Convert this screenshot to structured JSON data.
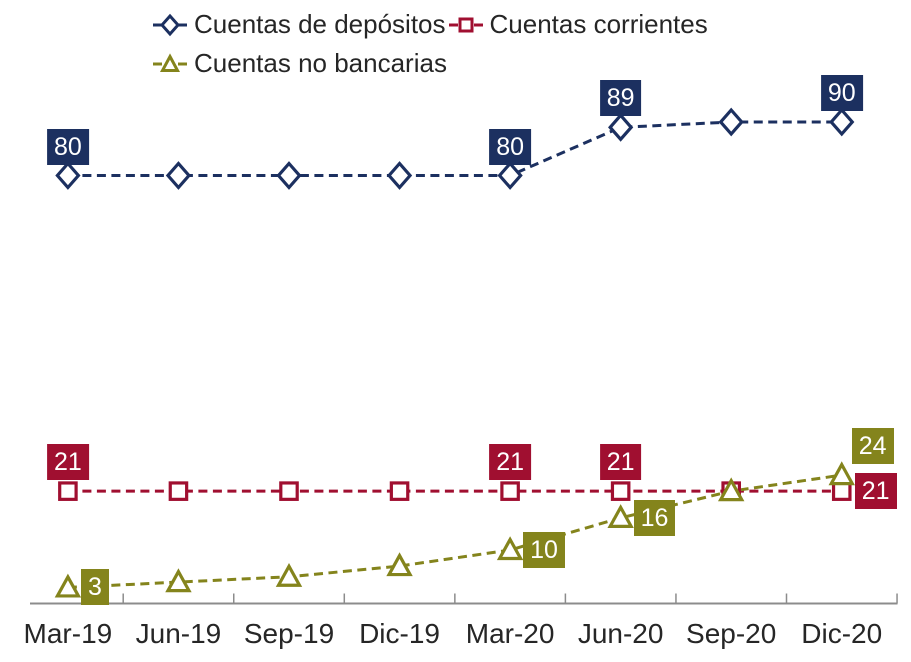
{
  "chart_data": {
    "type": "line",
    "title": "",
    "xlabel": "",
    "ylabel": "",
    "categories": [
      "Mar-19",
      "Jun-19",
      "Sep-19",
      "Dic-19",
      "Mar-20",
      "Jun-20",
      "Sep-20",
      "Dic-20"
    ],
    "series": [
      {
        "name": "Cuentas de depósitos",
        "marker": "diamond",
        "color": "#1C3060",
        "values": [
          80,
          80,
          80,
          80,
          80,
          89,
          90,
          90
        ],
        "labels": [
          {
            "index": 0,
            "text": "80",
            "placement": "above"
          },
          {
            "index": 4,
            "text": "80",
            "placement": "above"
          },
          {
            "index": 5,
            "text": "89",
            "placement": "above"
          },
          {
            "index": 7,
            "text": "90",
            "placement": "above"
          }
        ]
      },
      {
        "name": "Cuentas corrientes",
        "marker": "square",
        "color": "#A00F30",
        "values": [
          21,
          21,
          21,
          21,
          21,
          21,
          21,
          21
        ],
        "labels": [
          {
            "index": 0,
            "text": "21",
            "placement": "above"
          },
          {
            "index": 4,
            "text": "21",
            "placement": "above"
          },
          {
            "index": 5,
            "text": "21",
            "placement": "above"
          },
          {
            "index": 7,
            "text": "21",
            "placement": "right"
          }
        ]
      },
      {
        "name": "Cuentas no bancarias",
        "marker": "triangle",
        "color": "#84841C",
        "values": [
          3,
          4,
          5,
          7,
          10,
          16,
          21,
          24
        ],
        "labels": [
          {
            "index": 0,
            "text": "3",
            "placement": "right"
          },
          {
            "index": 4,
            "text": "10",
            "placement": "right"
          },
          {
            "index": 5,
            "text": "16",
            "placement": "right"
          },
          {
            "index": 7,
            "text": "24",
            "placement": "above-right"
          }
        ]
      }
    ],
    "ylim": [
      0,
      112
    ],
    "grid": false,
    "line_style": "dashed",
    "legend_position": "top-left",
    "axis_line_color": "#8C8C8C",
    "background_color": "#FFFFFF",
    "data_label_text_color": "#FFFFFF",
    "tick_label_color": "#262626"
  }
}
